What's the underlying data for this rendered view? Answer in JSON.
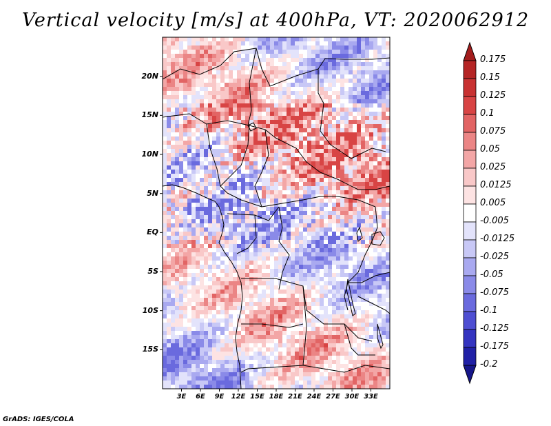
{
  "title": "Vertical velocity [m/s] at 400hPa, VT: 2020062912",
  "footer": "GrADS: IGES/COLA",
  "map": {
    "lon_range": [
      0,
      36
    ],
    "lat_range": [
      -20,
      25
    ],
    "lat_ticks": [
      {
        "value": 20,
        "label": "20N"
      },
      {
        "value": 15,
        "label": "15N"
      },
      {
        "value": 10,
        "label": "10N"
      },
      {
        "value": 5,
        "label": "5N"
      },
      {
        "value": 0,
        "label": "EQ"
      },
      {
        "value": -5,
        "label": "5S"
      },
      {
        "value": -10,
        "label": "10S"
      },
      {
        "value": -15,
        "label": "15S"
      }
    ],
    "lon_ticks": [
      {
        "value": 3,
        "label": "3E"
      },
      {
        "value": 6,
        "label": "6E"
      },
      {
        "value": 9,
        "label": "9E"
      },
      {
        "value": 12,
        "label": "12E"
      },
      {
        "value": 15,
        "label": "15E"
      },
      {
        "value": 18,
        "label": "18E"
      },
      {
        "value": 21,
        "label": "21E"
      },
      {
        "value": 24,
        "label": "24E"
      },
      {
        "value": 27,
        "label": "27E"
      },
      {
        "value": 30,
        "label": "30E"
      },
      {
        "value": 33,
        "label": "33E"
      }
    ]
  },
  "colorbar": {
    "levels": [
      {
        "label": "0.175",
        "color": "#a31d1d"
      },
      {
        "label": "0.15",
        "color": "#b52525"
      },
      {
        "label": "0.125",
        "color": "#c83232"
      },
      {
        "label": "0.1",
        "color": "#d84444"
      },
      {
        "label": "0.075",
        "color": "#e26464"
      },
      {
        "label": "0.05",
        "color": "#eb8585"
      },
      {
        "label": "0.025",
        "color": "#f3a6a6"
      },
      {
        "label": "0.0125",
        "color": "#f9c8c8"
      },
      {
        "label": "0.005",
        "color": "#fde3e3"
      },
      {
        "label": "-0.005",
        "color": "#ffffff"
      },
      {
        "label": "-0.0125",
        "color": "#e3e3fb"
      },
      {
        "label": "-0.025",
        "color": "#c8c8f6"
      },
      {
        "label": "-0.05",
        "color": "#a9a9f0"
      },
      {
        "label": "-0.075",
        "color": "#8a8ae8"
      },
      {
        "label": "-0.1",
        "color": "#6a6ade"
      },
      {
        "label": "-0.125",
        "color": "#4e4ed2"
      },
      {
        "label": "-0.175",
        "color": "#3434c0"
      },
      {
        "label": "-0.2",
        "color": "#2020a6"
      }
    ],
    "bottom_color": "#16168a"
  }
}
